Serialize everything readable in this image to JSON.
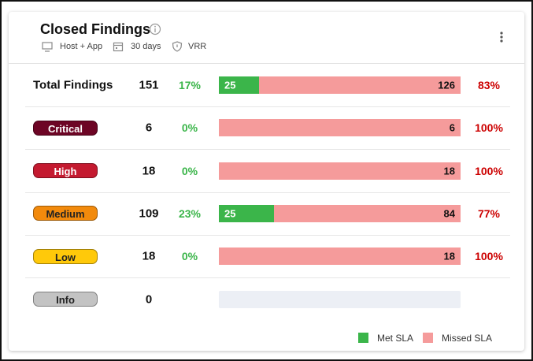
{
  "header": {
    "title": "Closed Findings",
    "filters": [
      "Host + App",
      "30 days",
      "VRR"
    ]
  },
  "rows": [
    {
      "label": "Total Findings",
      "total": 151,
      "met_pct": "17%",
      "met": 25,
      "missed": 126,
      "missed_pct": "83%"
    },
    {
      "label": "Critical",
      "color": "#6d0525",
      "text_color": "#ffffff",
      "total": 6,
      "met_pct": "0%",
      "missed": 6,
      "missed_pct": "100%"
    },
    {
      "label": "High",
      "color": "#c41a30",
      "text_color": "#ffffff",
      "total": 18,
      "met_pct": "0%",
      "missed": 18,
      "missed_pct": "100%"
    },
    {
      "label": "Medium",
      "color": "#f28a0c",
      "text_color": "#222222",
      "total": 109,
      "met_pct": "23%",
      "met": 25,
      "missed": 84,
      "missed_pct": "77%"
    },
    {
      "label": "Low",
      "color": "#ffc90a",
      "text_color": "#222222",
      "total": 18,
      "met_pct": "0%",
      "missed": 18,
      "missed_pct": "100%"
    },
    {
      "label": "Info",
      "color": "#c3c3c3",
      "text_color": "#222222",
      "total": 0
    }
  ],
  "legend": [
    {
      "name": "Met SLA",
      "color": "#3bb54a"
    },
    {
      "name": "Missed SLA",
      "color": "#f59b9b"
    }
  ]
}
